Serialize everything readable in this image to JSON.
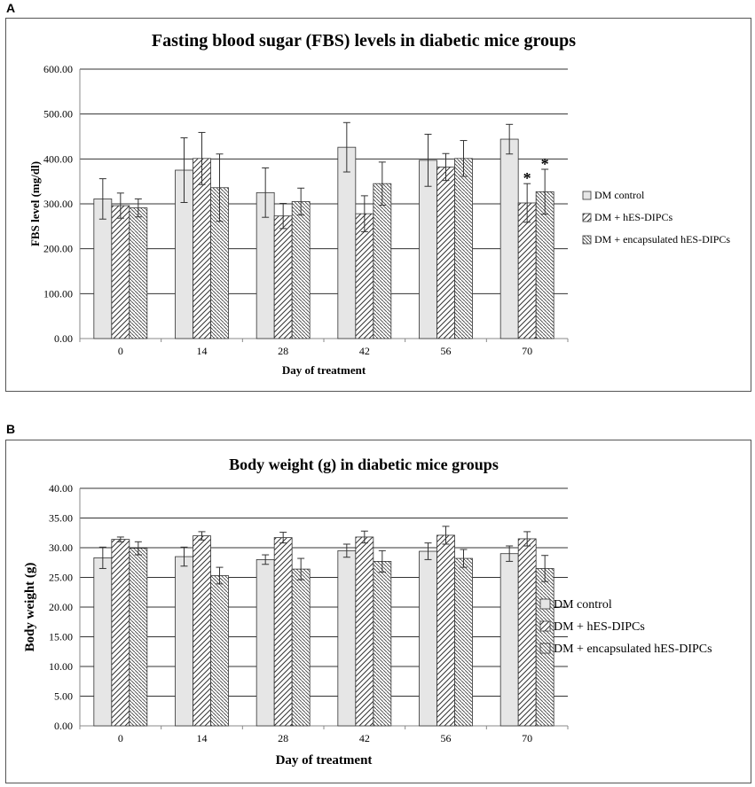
{
  "figure": {
    "panel_a_label": "A",
    "panel_b_label": "B"
  },
  "colors": {
    "bar_fill": "#e6e6e6",
    "bar_stroke": "#333333",
    "grid": "#333333",
    "axis": "#888888"
  },
  "chart_data": [
    {
      "type": "bar",
      "title": "Fasting blood sugar (FBS) levels in diabetic mice groups",
      "xlabel": "Day of treatment",
      "ylabel": "FBS level (mg/dl)",
      "categories": [
        "0",
        "14",
        "28",
        "42",
        "56",
        "70"
      ],
      "ylim": [
        0,
        600
      ],
      "ytick_step": 100,
      "ytick_labels": [
        "0.00",
        "100.00",
        "200.00",
        "300.00",
        "400.00",
        "500.00",
        "600.00"
      ],
      "grid": true,
      "legend_position": "right",
      "series": [
        {
          "name": "DM control",
          "pattern": "solid",
          "values": [
            311,
            375,
            325,
            426,
            397,
            444
          ],
          "errors": [
            45,
            72,
            55,
            55,
            58,
            33
          ]
        },
        {
          "name": "DM + hES-DIPCs",
          "pattern": "hatch-forward",
          "values": [
            296,
            401,
            273,
            278,
            382,
            302
          ],
          "errors": [
            28,
            58,
            28,
            40,
            30,
            43
          ]
        },
        {
          "name": "DM + encapsulated hES-DIPCs",
          "pattern": "hatch-back",
          "values": [
            291,
            336,
            305,
            345,
            401,
            327
          ],
          "errors": [
            20,
            75,
            30,
            48,
            40,
            50
          ]
        }
      ],
      "annotations": [
        {
          "text": "*",
          "category": "70",
          "series": "DM + hES-DIPCs"
        },
        {
          "text": "*",
          "category": "70",
          "series": "DM + encapsulated hES-DIPCs"
        }
      ]
    },
    {
      "type": "bar",
      "title": "Body weight (g) in diabetic mice groups",
      "xlabel": "Day of treatment",
      "ylabel": "Body weight (g)",
      "categories": [
        "0",
        "14",
        "28",
        "42",
        "56",
        "70"
      ],
      "ylim": [
        0,
        40
      ],
      "ytick_step": 5,
      "ytick_labels": [
        "0.00",
        "5.00",
        "10.00",
        "15.00",
        "20.00",
        "25.00",
        "30.00",
        "35.00",
        "40.00"
      ],
      "grid": true,
      "legend_position": "right",
      "series": [
        {
          "name": "DM control",
          "pattern": "solid",
          "values": [
            28.3,
            28.5,
            28.0,
            29.5,
            29.4,
            29.0
          ],
          "errors": [
            1.8,
            1.6,
            0.8,
            1.1,
            1.4,
            1.3
          ]
        },
        {
          "name": "DM + hES-DIPCs",
          "pattern": "hatch-forward",
          "values": [
            31.4,
            32.0,
            31.7,
            31.8,
            32.1,
            31.5
          ],
          "errors": [
            0.4,
            0.7,
            0.9,
            1.0,
            1.5,
            1.2
          ]
        },
        {
          "name": "DM + encapsulated hES-DIPCs",
          "pattern": "hatch-back",
          "values": [
            29.9,
            25.3,
            26.4,
            27.7,
            28.2,
            26.5
          ],
          "errors": [
            1.1,
            1.4,
            1.8,
            1.8,
            1.5,
            2.2
          ]
        }
      ],
      "annotations": []
    }
  ]
}
